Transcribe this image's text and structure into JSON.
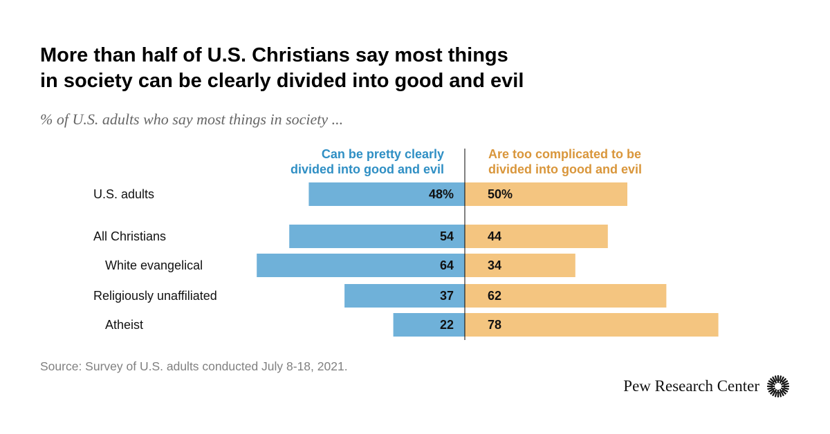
{
  "title_line1": "More than half of U.S. Christians say most things",
  "title_line2": "in society can be clearly divided into good and evil",
  "subtitle": "% of U.S. adults who say most things in society ...",
  "legend": {
    "left_line1": "Can be pretty clearly",
    "left_line2": "divided into good and evil",
    "right_line1": "Are too complicated to be",
    "right_line2": "divided into good and evil"
  },
  "colors": {
    "left": "#6fb1d9",
    "right": "#f4c580",
    "left_text": "#2f8fc4",
    "right_text": "#d9963b",
    "axis": "#000000"
  },
  "chart_data": {
    "type": "bar",
    "orientation": "diverging-horizontal",
    "title": "More than half of U.S. Christians say most things in society can be clearly divided into good and evil",
    "subtitle": "% of U.S. adults who say most things in society ...",
    "categories": [
      "U.S. adults",
      "All Christians",
      "White evangelical",
      "Religiously unaffiliated",
      "Atheist"
    ],
    "indent": [
      false,
      false,
      true,
      false,
      true
    ],
    "series": [
      {
        "name": "Can be pretty clearly divided into good and evil",
        "values": [
          48,
          54,
          64,
          37,
          22
        ],
        "labels": [
          "48%",
          "54",
          "64",
          "37",
          "22"
        ]
      },
      {
        "name": "Are too complicated to be divided into good and evil",
        "values": [
          50,
          44,
          34,
          62,
          78
        ],
        "labels": [
          "50%",
          "44",
          "34",
          "62",
          "78"
        ]
      }
    ],
    "xlim": [
      0,
      100
    ]
  },
  "source": "Source: Survey of U.S. adults conducted July 8-18, 2021.",
  "brand": "Pew Research Center"
}
